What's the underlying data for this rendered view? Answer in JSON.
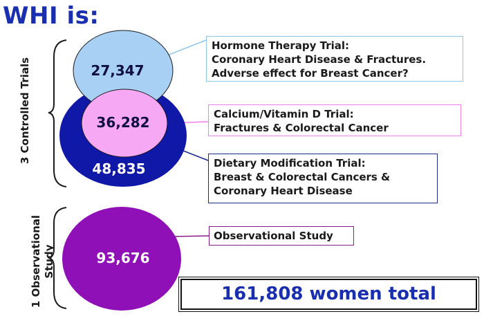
{
  "title": "WHI is:",
  "groups": {
    "trials_label": "3 Controlled Trials",
    "observational_label_line1": "1 Observational",
    "observational_label_line2": "Study"
  },
  "circles": {
    "hormone": {
      "count": "27,347",
      "color": "#a8d0f4"
    },
    "calcium": {
      "count": "36,282",
      "color": "#f7a8f4"
    },
    "dietary": {
      "count": "48,835",
      "color": "#1018a8"
    },
    "observational": {
      "count": "93,676",
      "color": "#9010b8"
    }
  },
  "descriptions": {
    "hormone": {
      "line1": "Hormone Therapy Trial:",
      "line2": "Coronary Heart Disease & Fractures.",
      "line3": "Adverse effect for Breast Cancer?",
      "border_color": "#8ec6ec"
    },
    "calcium": {
      "line1": "Calcium/Vitamin D Trial:",
      "line2": "Fractures & Colorectal Cancer",
      "border_color": "#f07cf0"
    },
    "dietary": {
      "line1": "Dietary Modification Trial:",
      "line2": "Breast & Colorectal Cancers &",
      "line3": "Coronary Heart Disease",
      "border_color": "#1a2a8a"
    },
    "observational": {
      "line1": "Observational Study",
      "border_color": "#8a1a8a"
    }
  },
  "total": "161,808 women total"
}
